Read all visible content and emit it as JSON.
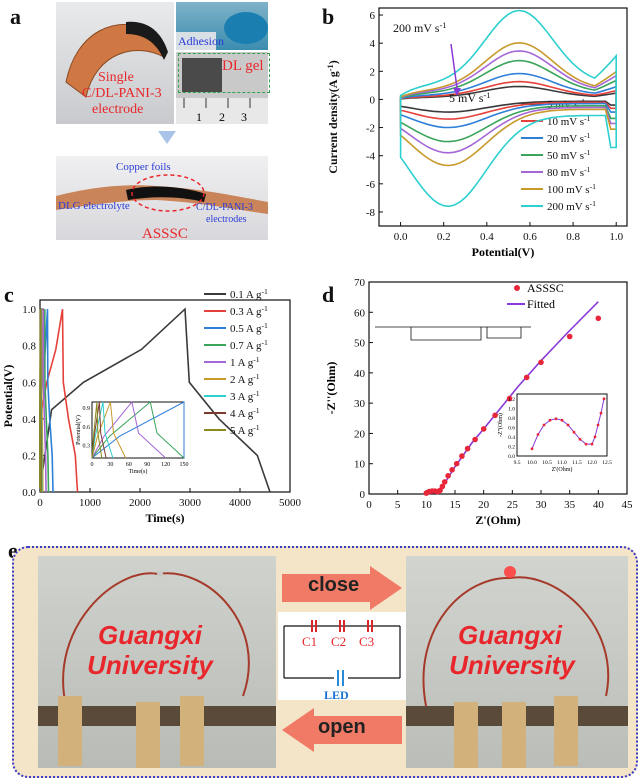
{
  "panel_a": {
    "letter": "a",
    "single_label": "Single",
    "electrode_label": "C/DL-PANI-3",
    "electrode_word": "electrode",
    "adhesion": "Adhesion",
    "dl_gel": "DL gel",
    "ruler_ticks": [
      "1",
      "2",
      "3"
    ],
    "copper_foils": "Copper foils",
    "dlg_electrolyte": "DLG electrolyte",
    "electrodes_label": "C/DL-PANI-3",
    "electrodes_word": "electrodes",
    "device": "ASSSC"
  },
  "panel_e": {
    "letter": "e",
    "close_label": "close",
    "open_label": "open",
    "university_line1": "Guangxi",
    "university_line2": "University",
    "capacitors": [
      "C1",
      "C2",
      "C3"
    ],
    "led_label": "LED"
  },
  "chart_data": [
    {
      "panel": "b",
      "type": "line",
      "title": "",
      "xlabel": "Potential(V)",
      "ylabel": "Current density(A g-1)",
      "xlim": [
        -0.1,
        1.05
      ],
      "ylim": [
        -9,
        6.5
      ],
      "xticks": [
        "0.0",
        "0.2",
        "0.4",
        "0.6",
        "0.8",
        "1.0"
      ],
      "yticks": [
        "-8",
        "-6",
        "-4",
        "-2",
        "0",
        "2",
        "4",
        "6"
      ],
      "annotation_top": "200 mV s-1",
      "annotation_bottom": "5 mV s-1",
      "legend_position": "bottom-right",
      "series": [
        {
          "name": "5 mV s-1",
          "color": "#3a3a3a",
          "peak": 0.8,
          "trough": -0.9
        },
        {
          "name": "10 mV s-1",
          "color": "#e5413b",
          "peak": 1.1,
          "trough": -1.4
        },
        {
          "name": "20 mV s-1",
          "color": "#2e7fd8",
          "peak": 1.6,
          "trough": -2.0
        },
        {
          "name": "50 mV s-1",
          "color": "#3aa45a",
          "peak": 2.4,
          "trough": -3.0
        },
        {
          "name": "80 mV s-1",
          "color": "#a566d6",
          "peak": 3.0,
          "trough": -3.8
        },
        {
          "name": "100 mV s-1",
          "color": "#c79a2a",
          "peak": 3.5,
          "trough": -4.7
        },
        {
          "name": "200 mV s-1",
          "color": "#2ecfcf",
          "peak": 5.5,
          "trough": -7.6
        }
      ]
    },
    {
      "panel": "c",
      "type": "line",
      "title": "",
      "xlabel": "Time(s)",
      "ylabel": "Potential(V)",
      "xlim": [
        0,
        5000
      ],
      "ylim": [
        0,
        1.05
      ],
      "xticks": [
        "0",
        "1000",
        "2000",
        "3000",
        "4000",
        "5000"
      ],
      "yticks": [
        "0.0",
        "0.2",
        "0.4",
        "0.6",
        "0.8",
        "1.0"
      ],
      "legend_position": "top-right",
      "series": [
        {
          "name": "0.1 A g-1",
          "color": "#3a3a3a",
          "charge_time": 2900,
          "total_time": 4600
        },
        {
          "name": "0.3 A g-1",
          "color": "#e5413b",
          "charge_time": 450,
          "total_time": 750
        },
        {
          "name": "0.5 A g-1",
          "color": "#2e7fd8",
          "charge_time": 150,
          "total_time": 260
        },
        {
          "name": "0.7 A g-1",
          "color": "#3aa45a",
          "charge_time": 95,
          "total_time": 170
        },
        {
          "name": "1 A g-1",
          "color": "#a566d6",
          "charge_time": 65,
          "total_time": 120
        },
        {
          "name": "2 A g-1",
          "color": "#c79a2a",
          "charge_time": 30,
          "total_time": 55
        },
        {
          "name": "3 A g-1",
          "color": "#2ecfcf",
          "charge_time": 18,
          "total_time": 34
        },
        {
          "name": "4 A g-1",
          "color": "#7a3b2e",
          "charge_time": 12,
          "total_time": 23
        },
        {
          "name": "5 A g-1",
          "color": "#8a8a1e",
          "charge_time": 8,
          "total_time": 16
        }
      ],
      "inset": {
        "xlabel": "Time(s)",
        "ylabel": "Potential(V)",
        "xticks": [
          "0",
          "30",
          "60",
          "90",
          "120",
          "150"
        ],
        "yticks": [
          "0.3",
          "0.6",
          "0.9"
        ]
      }
    },
    {
      "panel": "d",
      "type": "scatter",
      "title": "",
      "xlabel": "Z'(Ohm)",
      "ylabel": "-Z''(Ohm)",
      "xlim": [
        0,
        45
      ],
      "ylim": [
        0,
        70
      ],
      "xticks": [
        "0",
        "5",
        "10",
        "15",
        "20",
        "25",
        "30",
        "35",
        "40",
        "45"
      ],
      "yticks": [
        "0",
        "10",
        "20",
        "30",
        "40",
        "50",
        "60",
        "70"
      ],
      "legend_position": "top-right",
      "series": [
        {
          "name": "ASSSC",
          "color": "#e8263a",
          "x": [
            10.0,
            10.5,
            11.0,
            11.5,
            12.0,
            12.4,
            12.8,
            13.2,
            13.8,
            14.5,
            15.3,
            16.2,
            17.2,
            18.5,
            20.0,
            22.0,
            24.5,
            27.5,
            30.0,
            35.0,
            40.0
          ],
          "y": [
            0.3,
            0.8,
            1.0,
            1.0,
            0.8,
            1.2,
            2.5,
            4.0,
            6.0,
            8.0,
            10.0,
            12.5,
            15.0,
            18.0,
            21.5,
            26.0,
            31.5,
            38.5,
            43.5,
            52.0,
            58.0
          ]
        },
        {
          "name": "Fitted",
          "color": "#8a3ad6",
          "x": [
            10.0,
            11.0,
            12.0,
            12.5,
            13.0,
            14.0,
            15.0,
            16.5,
            18.0,
            20.0,
            23.0,
            26.0,
            30.0,
            35.0,
            40.0
          ],
          "y": [
            0.3,
            1.0,
            0.9,
            1.5,
            3.0,
            6.0,
            9.0,
            13.0,
            17.0,
            21.5,
            28.5,
            35.5,
            44.0,
            54.0,
            63.5
          ]
        }
      ],
      "inset": {
        "xlabel": "Z'(Ohm)",
        "ylabel": "-Z''(Ohm)",
        "xticks": [
          "9.5",
          "10.0",
          "10.5",
          "11.0",
          "11.5",
          "12.0",
          "12.5"
        ],
        "yticks": [
          "0.0",
          "0.2",
          "0.4",
          "0.6",
          "0.8",
          "1.0",
          "1.2"
        ],
        "x": [
          10.0,
          10.2,
          10.4,
          10.6,
          10.8,
          11.0,
          11.2,
          11.4,
          11.6,
          11.8,
          12.0,
          12.1,
          12.2,
          12.3,
          12.4
        ],
        "y": [
          0.15,
          0.45,
          0.65,
          0.75,
          0.78,
          0.75,
          0.65,
          0.5,
          0.35,
          0.25,
          0.25,
          0.4,
          0.65,
          0.9,
          1.2
        ]
      }
    }
  ]
}
